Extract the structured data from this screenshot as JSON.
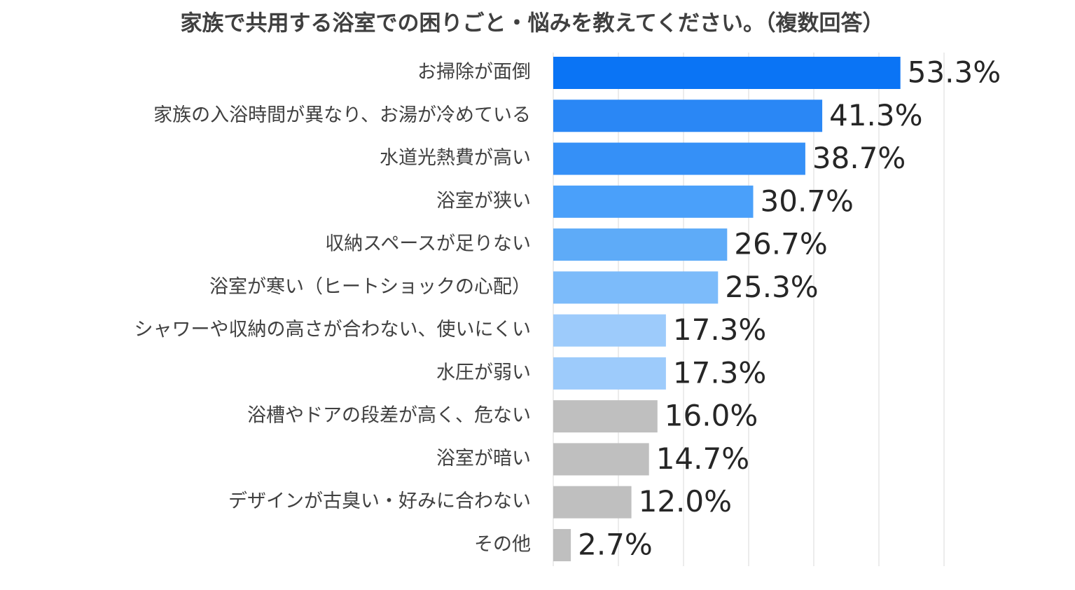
{
  "chart_data": {
    "type": "bar",
    "orientation": "horizontal",
    "title": "家族で共用する浴室での困りごと・悩みを教えてください。（複数回答）",
    "categories": [
      "お掃除が面倒",
      "家族の入浴時間が異なり、お湯が冷めている",
      "水道光熱費が高い",
      "浴室が狭い",
      "収納スペースが足りない",
      "浴室が寒い（ヒートショックの心配）",
      "シャワーや収納の高さが合わない、使いにくい",
      "水圧が弱い",
      "浴槽やドアの段差が高く、危ない",
      "浴室が暗い",
      "デザインが古臭い・好みに合わない",
      "その他"
    ],
    "values": [
      53.3,
      41.3,
      38.7,
      30.7,
      26.7,
      25.3,
      17.3,
      17.3,
      16.0,
      14.7,
      12.0,
      2.7
    ],
    "value_labels": [
      "53.3%",
      "41.3%",
      "38.7%",
      "30.7%",
      "26.7%",
      "25.3%",
      "17.3%",
      "17.3%",
      "16.0%",
      "14.7%",
      "12.0%",
      "2.7%"
    ],
    "colors": [
      "#0a74f5",
      "#2a87f5",
      "#3590f7",
      "#4aa0fa",
      "#5eabf8",
      "#7cbbfa",
      "#9dcbfb",
      "#9dcbfb",
      "#bfbfbf",
      "#bfbfbf",
      "#bfbfbf",
      "#bfbfbf"
    ],
    "xlim": [
      0,
      60
    ],
    "xticks": [
      0,
      10,
      20,
      30,
      40,
      50,
      60
    ],
    "grid": true
  }
}
